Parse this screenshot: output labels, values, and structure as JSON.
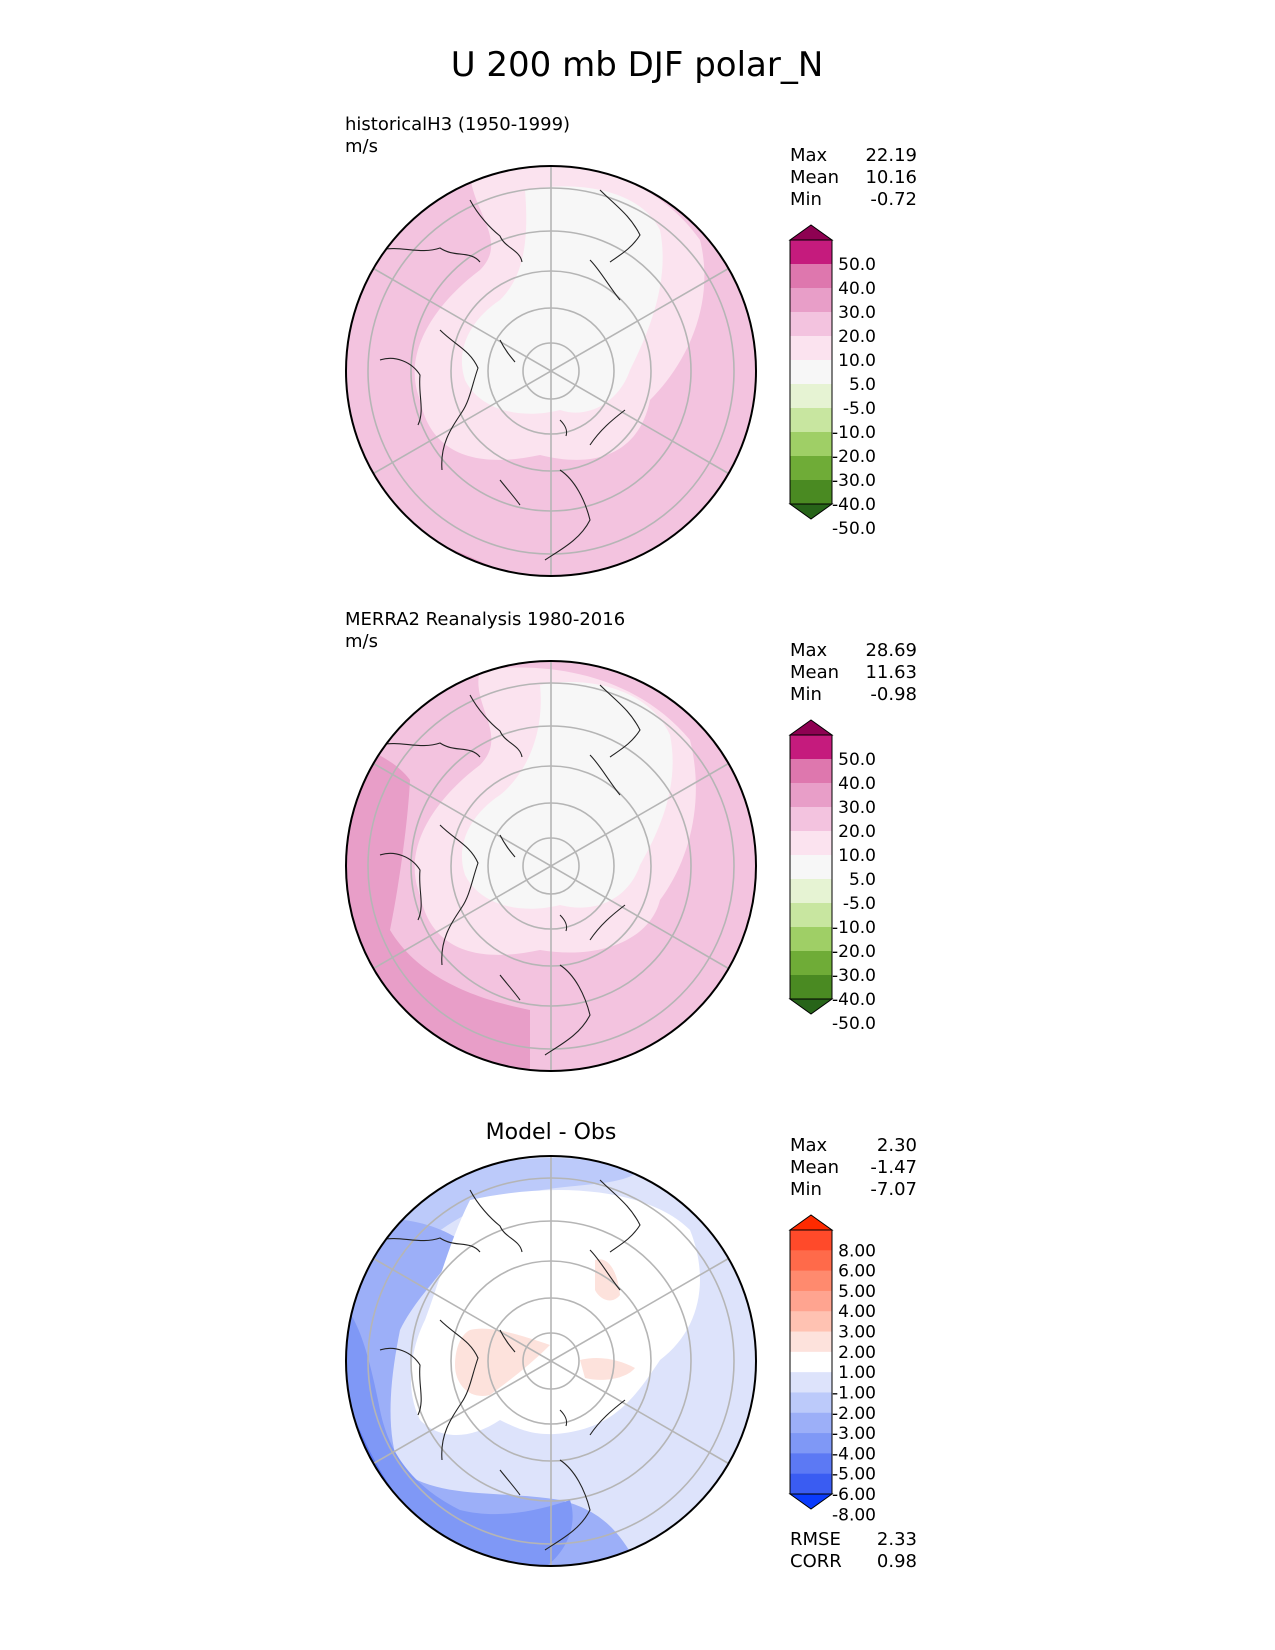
{
  "title": "U 200 mb DJF polar_N",
  "chart_data": [
    {
      "type": "heatmap",
      "projection": "north-polar-stereographic",
      "title": "historicalH3 (1950-1999)",
      "units": "m/s",
      "stats": [
        {
          "label": "Max",
          "value": "22.19"
        },
        {
          "label": "Mean",
          "value": "10.16"
        },
        {
          "label": "Min",
          "value": "-0.72"
        }
      ],
      "colorbar": {
        "levels": [
          "50.0",
          "40.0",
          "30.0",
          "20.0",
          "10.0",
          "5.0",
          "-5.0",
          "-10.0",
          "-20.0",
          "-30.0",
          "-40.0",
          "-50.0"
        ],
        "colors": [
          "#8e0152",
          "#c51b7d",
          "#de77ae",
          "#e89ec8",
          "#f3c3df",
          "#fbe3ef",
          "#f7f7f7",
          "#e6f3d3",
          "#c8e6a0",
          "#9fcf66",
          "#6fac37",
          "#4a8a22",
          "#276419"
        ]
      },
      "field_colors": [
        "#f3c3df",
        "#fbe3ef",
        "#f7f7f7",
        "#e89ec8"
      ]
    },
    {
      "type": "heatmap",
      "projection": "north-polar-stereographic",
      "title": "MERRA2 Reanalysis 1980-2016",
      "units": "m/s",
      "stats": [
        {
          "label": "Max",
          "value": "28.69"
        },
        {
          "label": "Mean",
          "value": "11.63"
        },
        {
          "label": "Min",
          "value": "-0.98"
        }
      ],
      "colorbar": {
        "levels": [
          "50.0",
          "40.0",
          "30.0",
          "20.0",
          "10.0",
          "5.0",
          "-5.0",
          "-10.0",
          "-20.0",
          "-30.0",
          "-40.0",
          "-50.0"
        ],
        "colors": [
          "#8e0152",
          "#c51b7d",
          "#de77ae",
          "#e89ec8",
          "#f3c3df",
          "#fbe3ef",
          "#f7f7f7",
          "#e6f3d3",
          "#c8e6a0",
          "#9fcf66",
          "#6fac37",
          "#4a8a22",
          "#276419"
        ]
      },
      "field_colors": [
        "#f3c3df",
        "#fbe3ef",
        "#f7f7f7",
        "#e89ec8"
      ]
    },
    {
      "type": "heatmap",
      "projection": "north-polar-stereographic",
      "title": "Model - Obs",
      "units": "",
      "stats": [
        {
          "label": "Max",
          "value": "2.30"
        },
        {
          "label": "Mean",
          "value": "-1.47"
        },
        {
          "label": "Min",
          "value": "-7.07"
        }
      ],
      "colorbar": {
        "levels": [
          "8.00",
          "6.00",
          "5.00",
          "4.00",
          "3.00",
          "2.00",
          "1.00",
          "-1.00",
          "-2.00",
          "-3.00",
          "-4.00",
          "-5.00",
          "-6.00",
          "-8.00"
        ],
        "colors": [
          "#ff2a00",
          "#ff4a2a",
          "#ff6a4a",
          "#ff8a6e",
          "#ffa490",
          "#ffc2b2",
          "#fde2dc",
          "#ffffff",
          "#dde3fb",
          "#bccafa",
          "#9caff8",
          "#7f98f6",
          "#5c79f4",
          "#3a5cf2",
          "#0a3bfd"
        ]
      },
      "field_colors": [
        "#ffffff",
        "#dde3fb",
        "#bccafa",
        "#9caff8",
        "#7f98f6",
        "#5c79f4",
        "#3a5cf2",
        "#fde2dc"
      ],
      "metrics": [
        {
          "label": "RMSE",
          "value": "2.33"
        },
        {
          "label": "CORR",
          "value": "0.98"
        }
      ]
    }
  ]
}
